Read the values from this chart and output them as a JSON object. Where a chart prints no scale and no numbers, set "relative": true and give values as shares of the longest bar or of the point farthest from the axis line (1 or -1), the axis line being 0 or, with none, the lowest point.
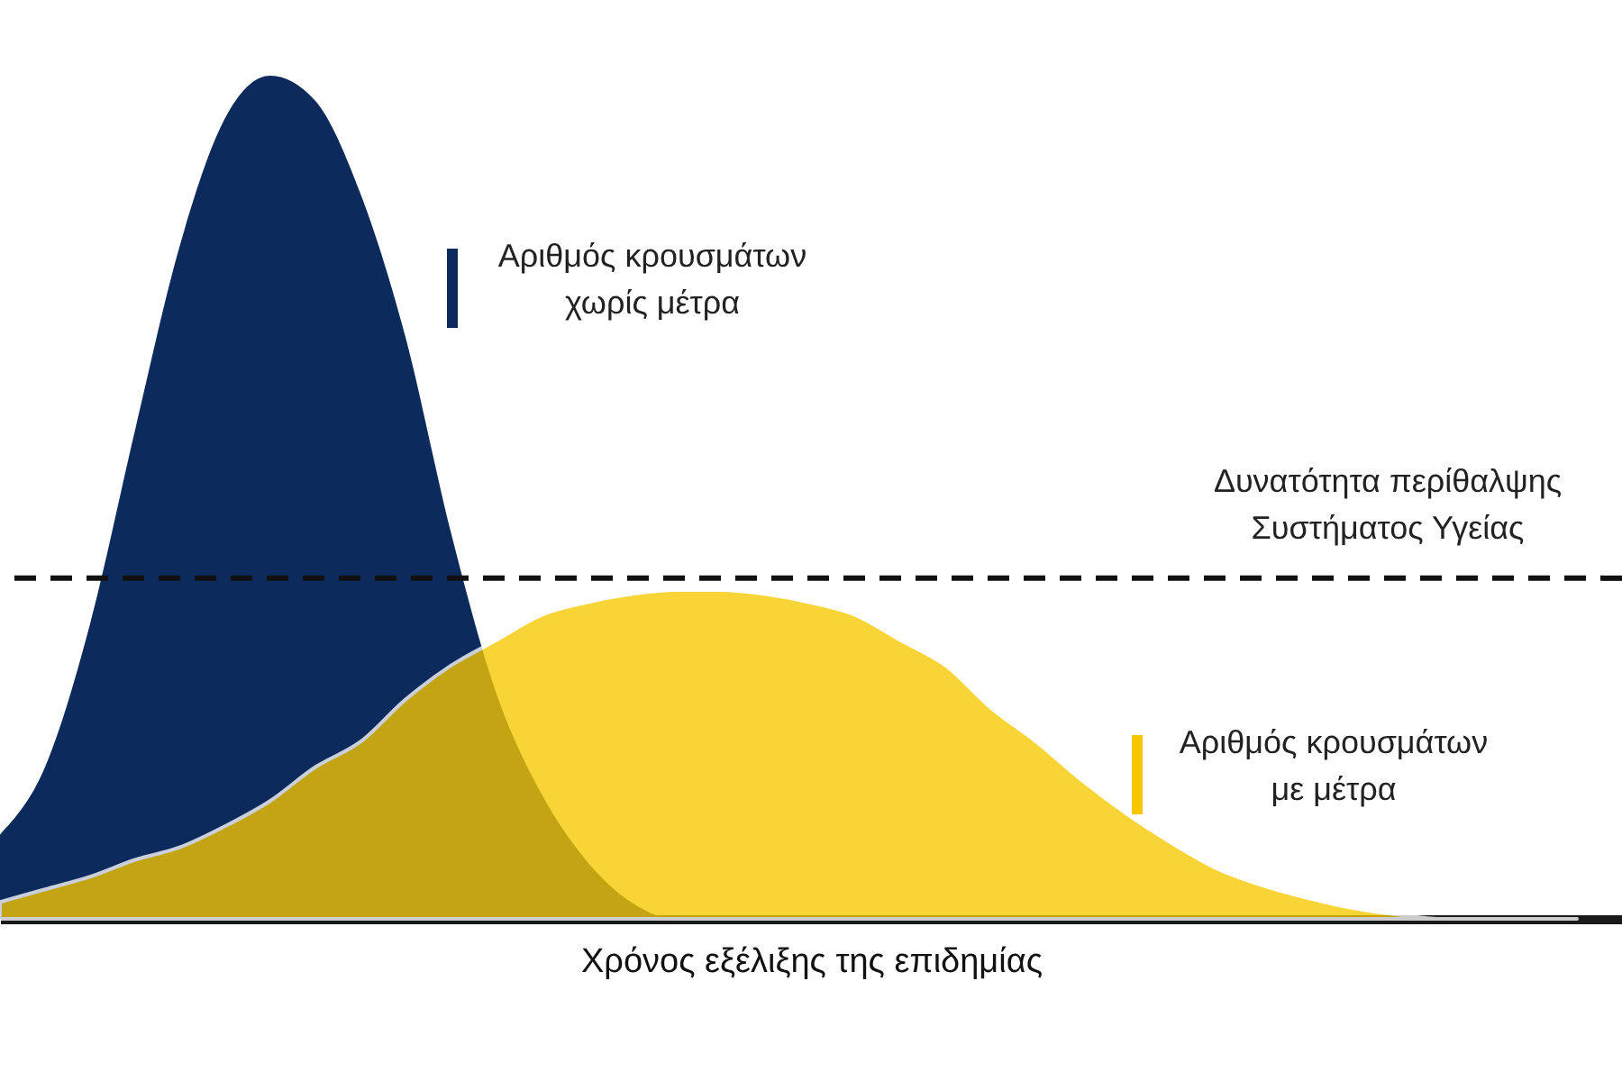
{
  "chart_data": {
    "type": "area",
    "relative": true,
    "legend": false,
    "xlabel": "Χρόνος εξέλιξης της επιδημίας",
    "categories": [
      null,
      null,
      null,
      null,
      null,
      null,
      null,
      null,
      null,
      null,
      null,
      null,
      null,
      null,
      null,
      null,
      null,
      null,
      null,
      null,
      null,
      null,
      null,
      null,
      null,
      null,
      null,
      null,
      null,
      null,
      null,
      null,
      null,
      null,
      null,
      null
    ],
    "series": [
      {
        "name": "Αριθμός κρουσμάτων χωρίς μέτρα",
        "color": "#0d2a5c",
        "values": [
          0.1,
          0.18,
          0.35,
          0.58,
          0.8,
          0.95,
          1.0,
          0.97,
          0.86,
          0.69,
          0.46,
          0.27,
          0.15,
          0.07,
          0.02,
          0,
          0,
          0,
          0,
          0,
          0,
          0,
          0,
          0,
          0,
          0,
          0,
          0,
          0,
          0,
          0,
          0,
          0,
          0,
          0,
          0
        ]
      },
      {
        "name": "Αριθμός κρουσμάτων με μέτρα",
        "color": "#f7c800",
        "values": [
          0.02,
          0.035,
          0.05,
          0.07,
          0.085,
          0.11,
          0.14,
          0.18,
          0.21,
          0.26,
          0.3,
          0.33,
          0.36,
          0.375,
          0.385,
          0.39,
          0.39,
          0.385,
          0.375,
          0.36,
          0.33,
          0.3,
          0.25,
          0.21,
          0.165,
          0.125,
          0.09,
          0.06,
          0.04,
          0.025,
          0.013,
          0.005,
          0,
          0,
          0,
          0
        ]
      }
    ],
    "ref_lines": [
      {
        "axis": "y",
        "value": 0.404,
        "label": "Δυνατότητα περίθαλψης Συστήματος Υγείας",
        "color": "#111111",
        "line_style": "dashed"
      }
    ]
  }
}
